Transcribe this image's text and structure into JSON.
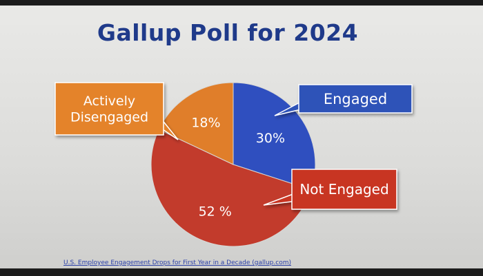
{
  "title": "Gallup Poll for 2024",
  "source_link": "U.S. Employee Engagement Drops for First Year in a Decade (gallup.com)",
  "chart_data": {
    "type": "pie",
    "title": "Gallup Poll for 2024",
    "slices": [
      {
        "label": "Engaged",
        "value": 30,
        "value_label": "30%",
        "color": "#2f4fbf",
        "callout_color": "#2f52b8"
      },
      {
        "label": "Not Engaged",
        "value": 52,
        "value_label": "52 %",
        "color": "#c23b2c",
        "callout_color": "#c83424"
      },
      {
        "label": "Actively Disengaged",
        "value": 18,
        "value_label": "18%",
        "color": "#e07e2a",
        "callout_color": "#e4832c"
      }
    ]
  }
}
